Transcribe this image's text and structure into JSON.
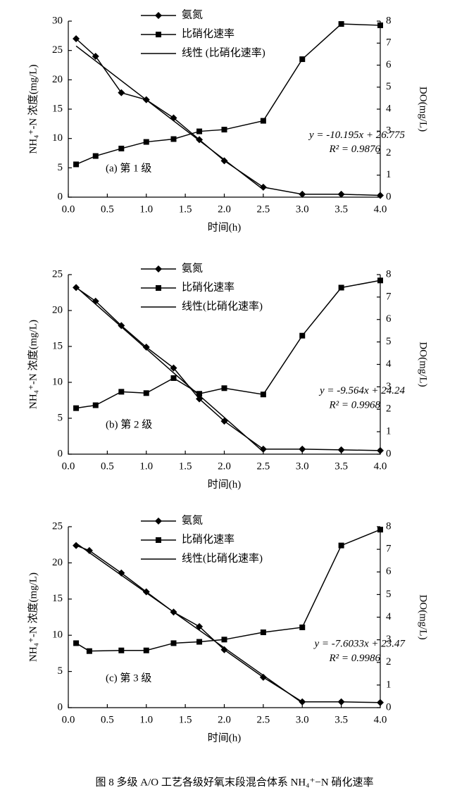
{
  "chart_data": [
    {
      "type": "line",
      "panel_label": "(a) 第 1 级",
      "xlabel": "时间(h)",
      "ylabel": "NH₄⁺-N 浓度(mg/L)",
      "y2label": "DO(mg/L)",
      "xlim": [
        0,
        4
      ],
      "xticks": [
        {
          "value": 0,
          "label": "0.0"
        },
        0.5,
        {
          "value": 1,
          "label": "1.0"
        },
        1.5,
        {
          "value": 2,
          "label": "2.0"
        },
        2.5,
        {
          "value": 3,
          "label": "3.0"
        },
        3.5,
        {
          "value": 4,
          "label": "4.0"
        }
      ],
      "ylim": [
        0,
        30
      ],
      "yticks": [
        0,
        5,
        10,
        15,
        20,
        25,
        30
      ],
      "y2lim": [
        0,
        8
      ],
      "y2ticks": [
        0,
        1,
        2,
        3,
        4,
        5,
        6,
        7,
        8
      ],
      "legend": "upper center",
      "series": [
        {
          "name": "氨氮",
          "marker": "diamond",
          "color": "#000000",
          "x": [
            0.1,
            0.35,
            0.68,
            1.0,
            1.35,
            1.68,
            2.0,
            2.5,
            3.0,
            3.5,
            4.0
          ],
          "values": [
            27,
            24,
            17.8,
            16.6,
            13.5,
            9.8,
            6.2,
            1.7,
            0.5,
            0.5,
            0.3
          ]
        },
        {
          "name": "比硝化速率",
          "marker": "square",
          "color": "#000000",
          "axis": "y2",
          "x": [
            0.1,
            0.35,
            0.68,
            1.0,
            1.35,
            1.68,
            2.0,
            2.5,
            3.0,
            3.5,
            4.0
          ],
          "values": [
            1.49,
            1.87,
            2.21,
            2.51,
            2.64,
            2.99,
            3.07,
            3.47,
            6.27,
            7.87,
            7.81
          ]
        },
        {
          "name": "线性 (比硝化速率)",
          "marker": "none",
          "color": "#000000",
          "x": [
            0.1,
            2.5
          ],
          "values": [
            25.76,
            1.29
          ]
        }
      ],
      "annotations": [
        "y = -10.195x + 26.775",
        "R² = 0.9876"
      ]
    },
    {
      "type": "line",
      "panel_label": "(b) 第 2 级",
      "xlabel": "时间(h)",
      "ylabel": "NH₄⁺-N 浓度(mg/L)",
      "y2label": "DO(mg/L)",
      "xlim": [
        0,
        4
      ],
      "xticks": [
        {
          "value": 0,
          "label": "0.0"
        },
        0.5,
        {
          "value": 1,
          "label": "1.0"
        },
        1.5,
        {
          "value": 2,
          "label": "2.0"
        },
        2.5,
        {
          "value": 3,
          "label": "3.0"
        },
        3.5,
        {
          "value": 4,
          "label": "4.0"
        }
      ],
      "ylim": [
        0,
        25
      ],
      "yticks": [
        0,
        5,
        10,
        15,
        20,
        25
      ],
      "y2lim": [
        0,
        8
      ],
      "y2ticks": [
        0,
        1,
        2,
        3,
        4,
        5,
        6,
        7,
        8
      ],
      "legend": "upper center",
      "series": [
        {
          "name": "氨氮",
          "marker": "diamond",
          "color": "#000000",
          "x": [
            0.1,
            0.35,
            0.68,
            1.0,
            1.35,
            1.68,
            2.0,
            2.5,
            3.0,
            3.5,
            4.0
          ],
          "values": [
            23.2,
            21.3,
            17.9,
            14.9,
            12.0,
            7.7,
            4.6,
            0.7,
            0.7,
            0.6,
            0.5
          ]
        },
        {
          "name": "比硝化速率",
          "marker": "square",
          "color": "#000000",
          "axis": "y2",
          "x": [
            0.1,
            0.35,
            0.68,
            1.0,
            1.35,
            1.68,
            2.0,
            2.5,
            3.0,
            3.5,
            4.0
          ],
          "values": [
            2.05,
            2.18,
            2.78,
            2.72,
            3.39,
            2.69,
            2.94,
            2.66,
            5.28,
            7.42,
            7.74
          ]
        },
        {
          "name": "线性(比硝化速率)",
          "marker": "none",
          "color": "#000000",
          "x": [
            0.1,
            2.5
          ],
          "values": [
            23.28,
            0.33
          ]
        }
      ],
      "annotations": [
        "y = -9.564x + 24.24",
        "R² = 0.9968"
      ]
    },
    {
      "type": "line",
      "panel_label": "(c) 第 3 级",
      "xlabel": "时间(h)",
      "ylabel": "NH₄⁺-N 浓度(mg/L)",
      "y2label": "DO(mg/L)",
      "xlim": [
        0,
        4
      ],
      "xticks": [
        {
          "value": 0,
          "label": "0.0"
        },
        0.5,
        {
          "value": 1,
          "label": "1.0"
        },
        1.5,
        {
          "value": 2,
          "label": "2.0"
        },
        2.5,
        {
          "value": 3,
          "label": "3.0"
        },
        3.5,
        {
          "value": 4,
          "label": "4.0"
        }
      ],
      "ylim": [
        0,
        25
      ],
      "yticks": [
        0,
        5,
        10,
        15,
        20,
        25
      ],
      "y2lim": [
        0,
        8
      ],
      "y2ticks": [
        0,
        1,
        2,
        3,
        4,
        5,
        6,
        7,
        8
      ],
      "legend": "upper center",
      "series": [
        {
          "name": "氨氮",
          "marker": "diamond",
          "color": "#000000",
          "x": [
            0.1,
            0.27,
            0.68,
            1.0,
            1.35,
            1.68,
            2.0,
            2.5,
            3.0,
            3.5,
            4.0
          ],
          "values": [
            22.4,
            21.7,
            18.6,
            16.0,
            13.2,
            11.2,
            8.0,
            4.2,
            0.8,
            0.8,
            0.7
          ]
        },
        {
          "name": "比硝化速率",
          "marker": "square",
          "color": "#000000",
          "axis": "y2",
          "x": [
            0.1,
            0.27,
            0.68,
            1.0,
            1.35,
            1.68,
            2.0,
            2.5,
            3.0,
            3.5,
            4.0
          ],
          "values": [
            2.85,
            2.5,
            2.53,
            2.53,
            2.85,
            2.91,
            3.01,
            3.33,
            3.55,
            7.17,
            7.87
          ]
        },
        {
          "name": "线性(比硝化速率)",
          "marker": "none",
          "color": "#000000",
          "x": [
            0.1,
            3.0
          ],
          "values": [
            22.71,
            0.66
          ]
        }
      ],
      "annotations": [
        "y = -7.6033x + 23.47",
        "R² = 0.9986"
      ]
    }
  ],
  "figure_caption": "图 8   多级 A/O 工艺各级好氧末段混合体系 NH₄⁺−N 硝化速率"
}
